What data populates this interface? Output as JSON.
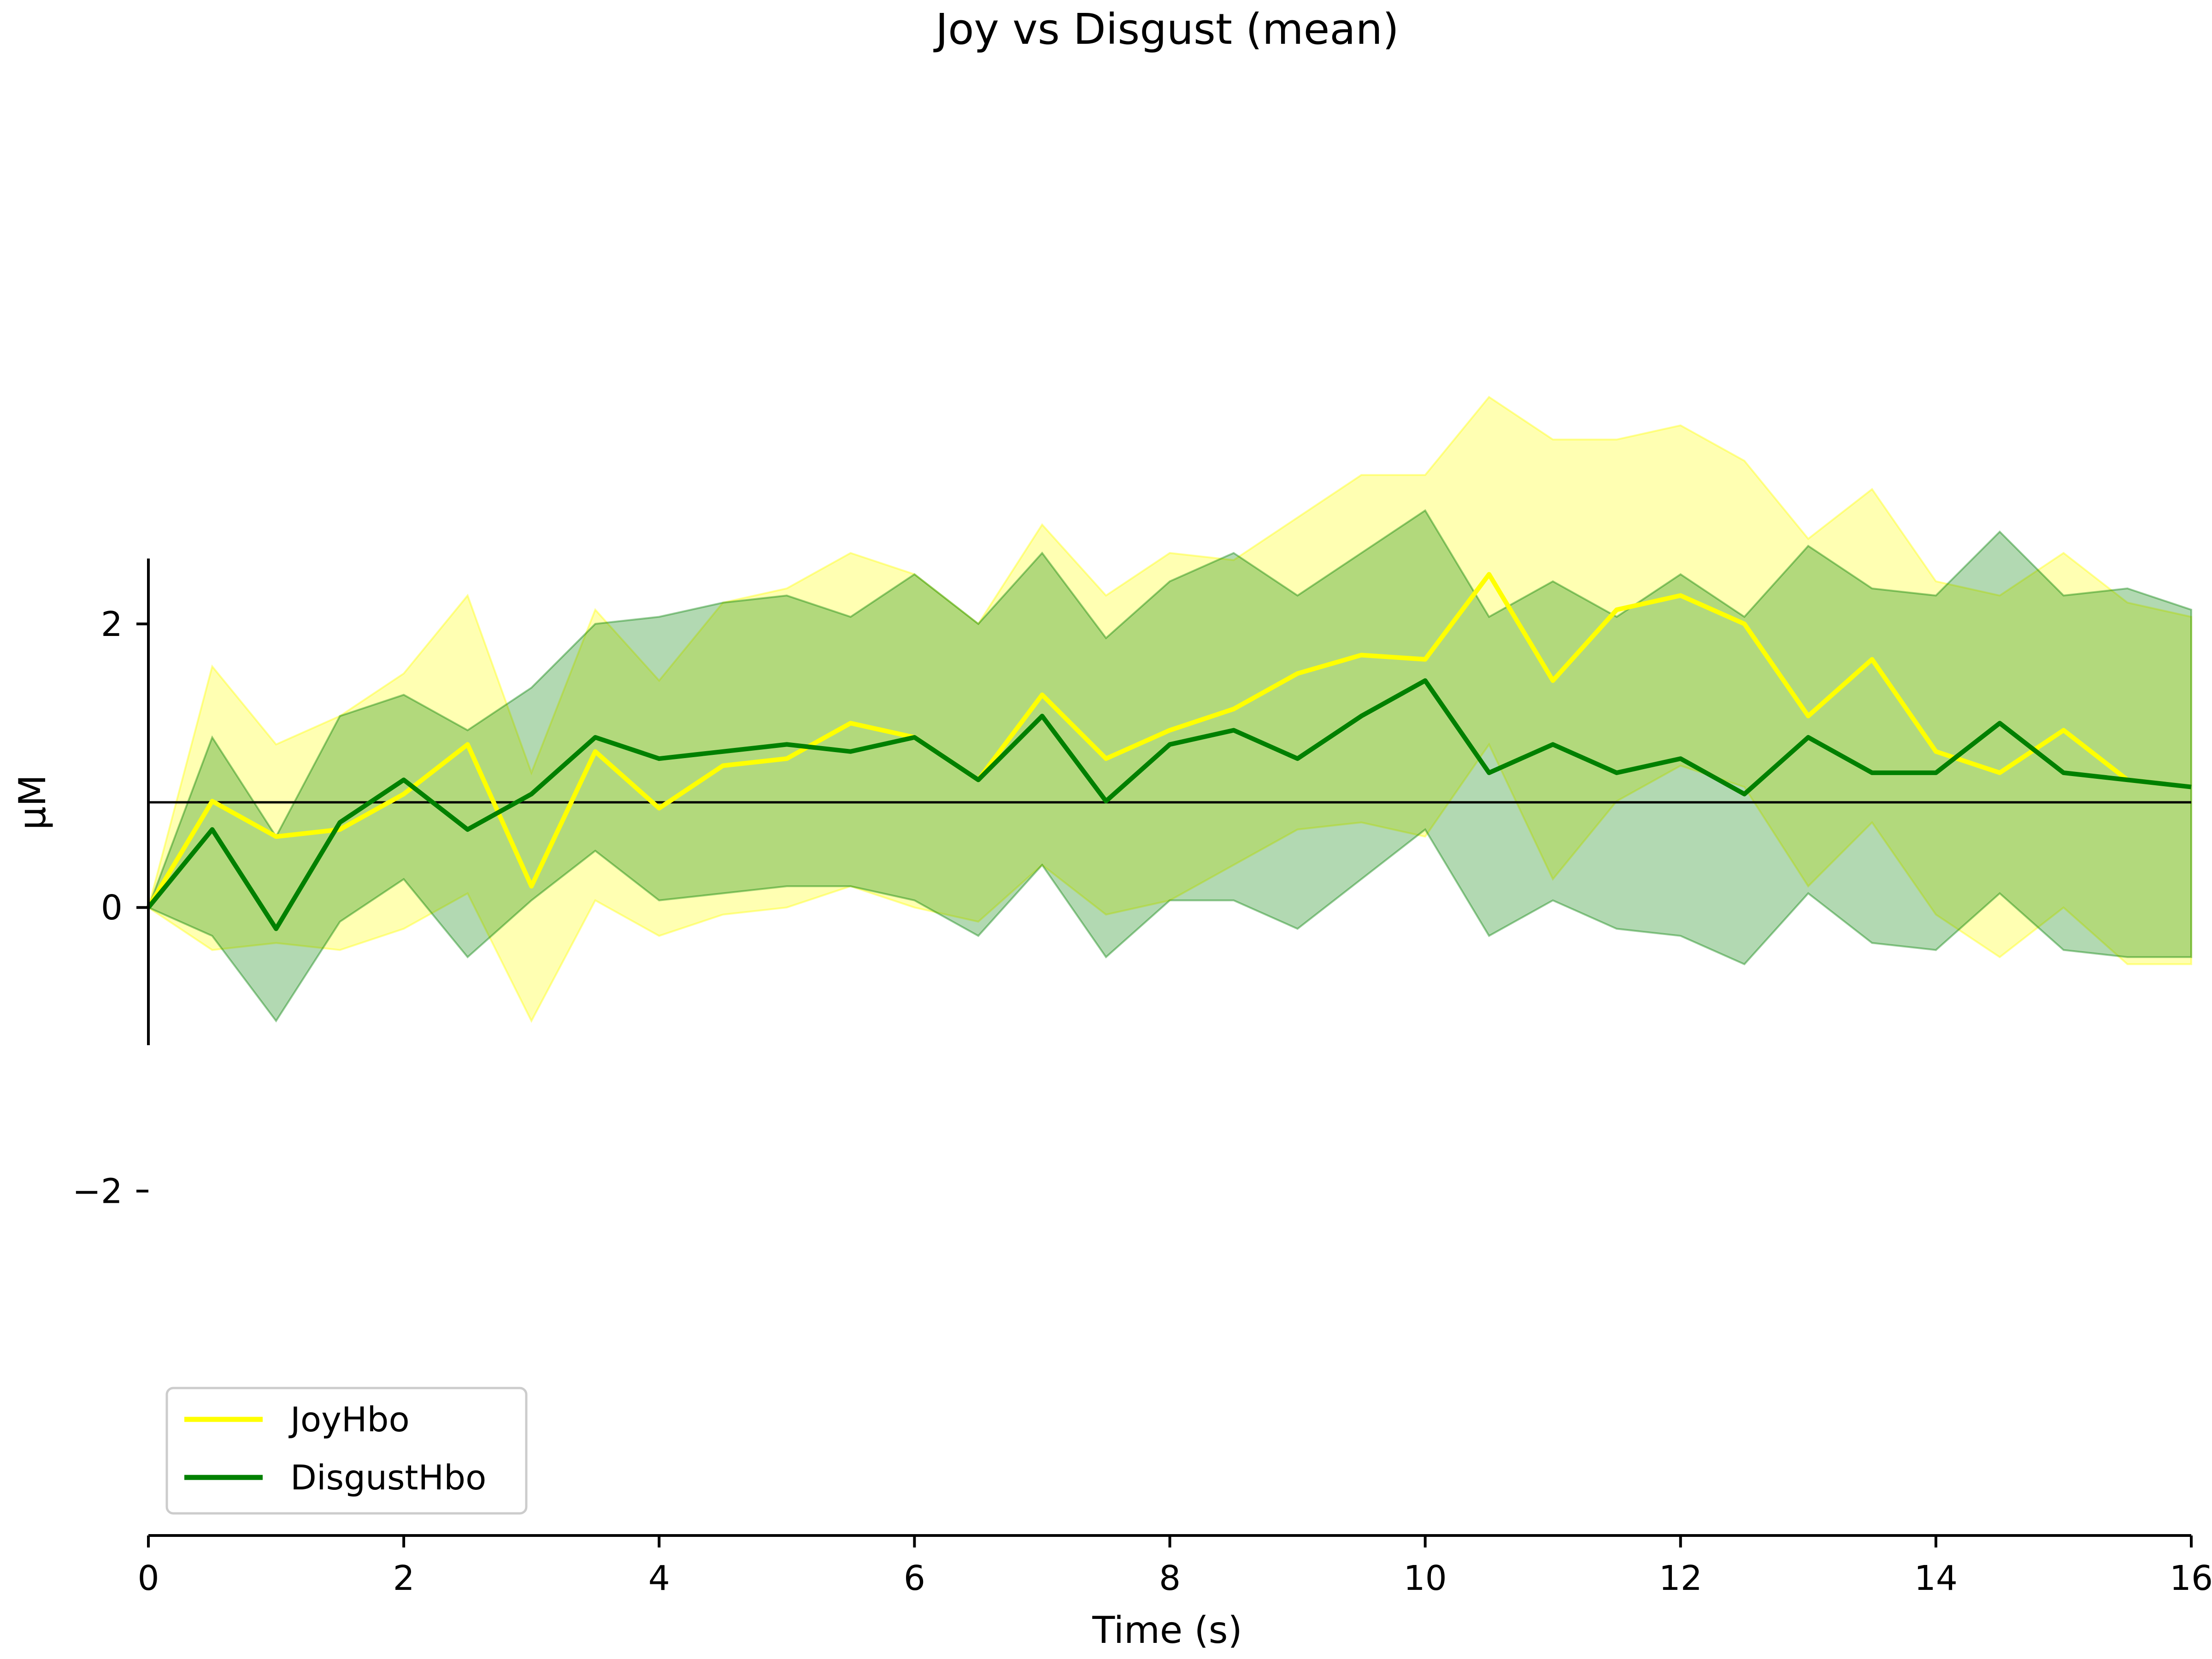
{
  "chart_data": {
    "type": "line",
    "title": "Joy vs Disgust (mean)",
    "xlabel": "Time (s)",
    "ylabel": "µM",
    "xlim": [
      0,
      16
    ],
    "ylim": [
      -5.3,
      6.4
    ],
    "x_ticks": [
      0,
      2,
      4,
      6,
      8,
      10,
      12,
      14,
      16
    ],
    "x_tick_labels": [
      "0",
      "2",
      "4",
      "6",
      "8",
      "10",
      "12",
      "14",
      "16"
    ],
    "y_ticks": [
      -2,
      0,
      2
    ],
    "y_tick_labels": [
      "−2",
      "0",
      "2"
    ],
    "grid": false,
    "legend_position": "lower-left",
    "zero_line": true,
    "x": [
      0,
      0.5,
      1,
      1.5,
      2,
      2.5,
      3,
      3.5,
      4,
      4.5,
      5,
      5.5,
      6,
      6.5,
      7,
      7.5,
      8,
      8.5,
      9,
      9.5,
      10,
      10.5,
      11,
      11.5,
      12,
      12.5,
      13,
      13.5,
      14,
      14.5,
      15,
      15.5,
      16
    ],
    "series": [
      {
        "name": "JoyHbo",
        "color": "#ffff00",
        "band_color": "#ffff00",
        "band_opacity": 0.3,
        "values": [
          0.0,
          0.75,
          0.5,
          0.55,
          0.8,
          1.15,
          0.15,
          1.1,
          0.7,
          1.0,
          1.05,
          1.3,
          1.2,
          0.9,
          1.5,
          1.05,
          1.25,
          1.4,
          1.65,
          1.78,
          1.75,
          2.35,
          1.6,
          2.1,
          2.2,
          2.0,
          1.35,
          1.75,
          1.1,
          0.95,
          1.25,
          0.9,
          0.85
        ],
        "upper": [
          0.0,
          1.7,
          1.15,
          1.35,
          1.65,
          2.2,
          0.95,
          2.1,
          1.6,
          2.15,
          2.25,
          2.5,
          2.35,
          2.0,
          2.7,
          2.2,
          2.5,
          2.45,
          2.75,
          3.05,
          3.05,
          3.6,
          3.3,
          3.3,
          3.4,
          3.15,
          2.6,
          2.95,
          2.3,
          2.2,
          2.5,
          2.15,
          2.05
        ],
        "lower": [
          0.0,
          -0.3,
          -0.25,
          -0.3,
          -0.15,
          0.1,
          -0.8,
          0.05,
          -0.2,
          -0.05,
          0.0,
          0.15,
          0.0,
          -0.1,
          0.3,
          -0.05,
          0.05,
          0.3,
          0.55,
          0.6,
          0.5,
          1.15,
          0.2,
          0.75,
          1.0,
          0.85,
          0.15,
          0.6,
          -0.05,
          -0.35,
          0.0,
          -0.4,
          -0.4
        ]
      },
      {
        "name": "DisgustHbo",
        "color": "#008000",
        "band_color": "#008000",
        "band_opacity": 0.3,
        "values": [
          0.0,
          0.55,
          -0.15,
          0.6,
          0.9,
          0.55,
          0.8,
          1.2,
          1.05,
          1.1,
          1.15,
          1.1,
          1.2,
          0.9,
          1.35,
          0.75,
          1.15,
          1.25,
          1.05,
          1.35,
          1.6,
          0.95,
          1.15,
          0.95,
          1.05,
          0.8,
          1.2,
          0.95,
          0.95,
          1.3,
          0.95,
          0.9,
          0.85
        ],
        "upper": [
          0.0,
          1.2,
          0.5,
          1.35,
          1.5,
          1.25,
          1.55,
          2.0,
          2.05,
          2.15,
          2.2,
          2.05,
          2.35,
          2.0,
          2.5,
          1.9,
          2.3,
          2.5,
          2.2,
          2.5,
          2.8,
          2.05,
          2.3,
          2.05,
          2.35,
          2.05,
          2.55,
          2.25,
          2.2,
          2.65,
          2.2,
          2.25,
          2.1
        ],
        "lower": [
          0.0,
          -0.2,
          -0.8,
          -0.1,
          0.2,
          -0.35,
          0.05,
          0.4,
          0.05,
          0.1,
          0.15,
          0.15,
          0.05,
          -0.2,
          0.3,
          -0.35,
          0.05,
          0.05,
          -0.15,
          0.2,
          0.55,
          -0.2,
          0.05,
          -0.15,
          -0.2,
          -0.4,
          0.1,
          -0.25,
          -0.3,
          0.1,
          -0.3,
          -0.35,
          -0.35
        ]
      }
    ]
  }
}
